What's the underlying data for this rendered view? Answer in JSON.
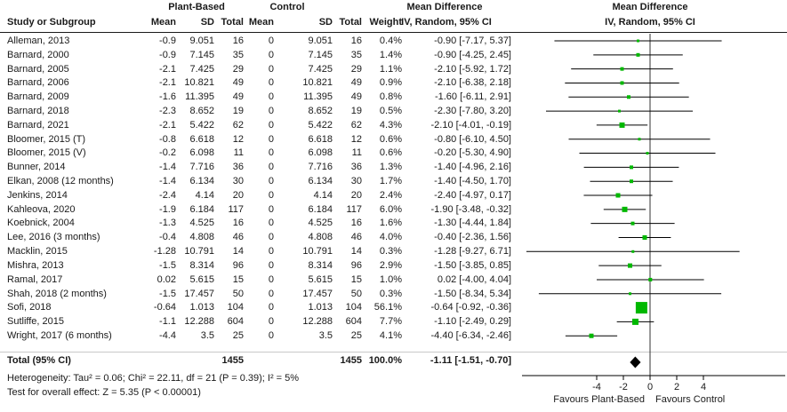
{
  "chart_data": {
    "type": "scatter",
    "variant": "forest-plot-meta-analysis",
    "effect_measure": "Mean Difference",
    "method": "IV, Random, 95% CI",
    "group_headers": [
      "Plant-Based",
      "Control",
      "Mean Difference",
      "Mean Difference"
    ],
    "columns": [
      "Study or Subgroup",
      "Mean",
      "SD",
      "Total",
      "Mean",
      "SD",
      "Total",
      "Weight"
    ],
    "studies": [
      {
        "name": "Alleman, 2013",
        "pb_mean": "-0.9",
        "pb_sd": "9.051",
        "pb_total": "16",
        "c_mean": "0",
        "c_sd": "9.051",
        "c_total": "16",
        "weight": "0.4%",
        "md": -0.9,
        "lo": -7.17,
        "hi": 5.37,
        "ci_text": "-0.90 [-7.17, 5.37]"
      },
      {
        "name": "Barnard, 2000",
        "pb_mean": "-0.9",
        "pb_sd": "7.145",
        "pb_total": "35",
        "c_mean": "0",
        "c_sd": "7.145",
        "c_total": "35",
        "weight": "1.4%",
        "md": -0.9,
        "lo": -4.25,
        "hi": 2.45,
        "ci_text": "-0.90 [-4.25, 2.45]"
      },
      {
        "name": "Barnard, 2005",
        "pb_mean": "-2.1",
        "pb_sd": "7.425",
        "pb_total": "29",
        "c_mean": "0",
        "c_sd": "7.425",
        "c_total": "29",
        "weight": "1.1%",
        "md": -2.1,
        "lo": -5.92,
        "hi": 1.72,
        "ci_text": "-2.10 [-5.92, 1.72]"
      },
      {
        "name": "Barnard, 2006",
        "pb_mean": "-2.1",
        "pb_sd": "10.821",
        "pb_total": "49",
        "c_mean": "0",
        "c_sd": "10.821",
        "c_total": "49",
        "weight": "0.9%",
        "md": -2.1,
        "lo": -6.38,
        "hi": 2.18,
        "ci_text": "-2.10 [-6.38, 2.18]"
      },
      {
        "name": "Barnard, 2009",
        "pb_mean": "-1.6",
        "pb_sd": "11.395",
        "pb_total": "49",
        "c_mean": "0",
        "c_sd": "11.395",
        "c_total": "49",
        "weight": "0.8%",
        "md": -1.6,
        "lo": -6.11,
        "hi": 2.91,
        "ci_text": "-1.60 [-6.11, 2.91]"
      },
      {
        "name": "Barnard, 2018",
        "pb_mean": "-2.3",
        "pb_sd": "8.652",
        "pb_total": "19",
        "c_mean": "0",
        "c_sd": "8.652",
        "c_total": "19",
        "weight": "0.5%",
        "md": -2.3,
        "lo": -7.8,
        "hi": 3.2,
        "ci_text": "-2.30 [-7.80, 3.20]"
      },
      {
        "name": "Barnard, 2021",
        "pb_mean": "-2.1",
        "pb_sd": "5.422",
        "pb_total": "62",
        "c_mean": "0",
        "c_sd": "5.422",
        "c_total": "62",
        "weight": "4.3%",
        "md": -2.1,
        "lo": -4.01,
        "hi": -0.19,
        "ci_text": "-2.10 [-4.01, -0.19]"
      },
      {
        "name": "Bloomer, 2015 (T)",
        "pb_mean": "-0.8",
        "pb_sd": "6.618",
        "pb_total": "12",
        "c_mean": "0",
        "c_sd": "6.618",
        "c_total": "12",
        "weight": "0.6%",
        "md": -0.8,
        "lo": -6.1,
        "hi": 4.5,
        "ci_text": "-0.80 [-6.10, 4.50]"
      },
      {
        "name": "Bloomer, 2015 (V)",
        "pb_mean": "-0.2",
        "pb_sd": "6.098",
        "pb_total": "11",
        "c_mean": "0",
        "c_sd": "6.098",
        "c_total": "11",
        "weight": "0.6%",
        "md": -0.2,
        "lo": -5.3,
        "hi": 4.9,
        "ci_text": "-0.20 [-5.30, 4.90]"
      },
      {
        "name": "Bunner, 2014",
        "pb_mean": "-1.4",
        "pb_sd": "7.716",
        "pb_total": "36",
        "c_mean": "0",
        "c_sd": "7.716",
        "c_total": "36",
        "weight": "1.3%",
        "md": -1.4,
        "lo": -4.96,
        "hi": 2.16,
        "ci_text": "-1.40 [-4.96, 2.16]"
      },
      {
        "name": "Elkan, 2008 (12 months)",
        "pb_mean": "-1.4",
        "pb_sd": "6.134",
        "pb_total": "30",
        "c_mean": "0",
        "c_sd": "6.134",
        "c_total": "30",
        "weight": "1.7%",
        "md": -1.4,
        "lo": -4.5,
        "hi": 1.7,
        "ci_text": "-1.40 [-4.50, 1.70]"
      },
      {
        "name": "Jenkins, 2014",
        "pb_mean": "-2.4",
        "pb_sd": "4.14",
        "pb_total": "20",
        "c_mean": "0",
        "c_sd": "4.14",
        "c_total": "20",
        "weight": "2.4%",
        "md": -2.4,
        "lo": -4.97,
        "hi": 0.17,
        "ci_text": "-2.40 [-4.97, 0.17]"
      },
      {
        "name": "Kahleova, 2020",
        "pb_mean": "-1.9",
        "pb_sd": "6.184",
        "pb_total": "117",
        "c_mean": "0",
        "c_sd": "6.184",
        "c_total": "117",
        "weight": "6.0%",
        "md": -1.9,
        "lo": -3.48,
        "hi": -0.32,
        "ci_text": "-1.90 [-3.48, -0.32]"
      },
      {
        "name": "Koebnick, 2004",
        "pb_mean": "-1.3",
        "pb_sd": "4.525",
        "pb_total": "16",
        "c_mean": "0",
        "c_sd": "4.525",
        "c_total": "16",
        "weight": "1.6%",
        "md": -1.3,
        "lo": -4.44,
        "hi": 1.84,
        "ci_text": "-1.30 [-4.44, 1.84]"
      },
      {
        "name": "Lee, 2016 (3 months)",
        "pb_mean": "-0.4",
        "pb_sd": "4.808",
        "pb_total": "46",
        "c_mean": "0",
        "c_sd": "4.808",
        "c_total": "46",
        "weight": "4.0%",
        "md": -0.4,
        "lo": -2.36,
        "hi": 1.56,
        "ci_text": "-0.40 [-2.36, 1.56]"
      },
      {
        "name": "Macklin, 2015",
        "pb_mean": "-1.28",
        "pb_sd": "10.791",
        "pb_total": "14",
        "c_mean": "0",
        "c_sd": "10.791",
        "c_total": "14",
        "weight": "0.3%",
        "md": -1.28,
        "lo": -9.27,
        "hi": 6.71,
        "ci_text": "-1.28 [-9.27, 6.71]"
      },
      {
        "name": "Mishra, 2013",
        "pb_mean": "-1.5",
        "pb_sd": "8.314",
        "pb_total": "96",
        "c_mean": "0",
        "c_sd": "8.314",
        "c_total": "96",
        "weight": "2.9%",
        "md": -1.5,
        "lo": -3.85,
        "hi": 0.85,
        "ci_text": "-1.50 [-3.85, 0.85]"
      },
      {
        "name": "Ramal, 2017",
        "pb_mean": "0.02",
        "pb_sd": "5.615",
        "pb_total": "15",
        "c_mean": "0",
        "c_sd": "5.615",
        "c_total": "15",
        "weight": "1.0%",
        "md": 0.02,
        "lo": -4.0,
        "hi": 4.04,
        "ci_text": "0.02 [-4.00, 4.04]"
      },
      {
        "name": "Shah, 2018 (2 months)",
        "pb_mean": "-1.5",
        "pb_sd": "17.457",
        "pb_total": "50",
        "c_mean": "0",
        "c_sd": "17.457",
        "c_total": "50",
        "weight": "0.3%",
        "md": -1.5,
        "lo": -8.34,
        "hi": 5.34,
        "ci_text": "-1.50 [-8.34, 5.34]"
      },
      {
        "name": "Sofi, 2018",
        "pb_mean": "-0.64",
        "pb_sd": "1.013",
        "pb_total": "104",
        "c_mean": "0",
        "c_sd": "1.013",
        "c_total": "104",
        "weight": "56.1%",
        "md": -0.64,
        "lo": -0.92,
        "hi": -0.36,
        "ci_text": "-0.64 [-0.92, -0.36]"
      },
      {
        "name": "Sutliffe, 2015",
        "pb_mean": "-1.1",
        "pb_sd": "12.288",
        "pb_total": "604",
        "c_mean": "0",
        "c_sd": "12.288",
        "c_total": "604",
        "weight": "7.7%",
        "md": -1.1,
        "lo": -2.49,
        "hi": 0.29,
        "ci_text": "-1.10 [-2.49, 0.29]"
      },
      {
        "name": "Wright, 2017 (6 months)",
        "pb_mean": "-4.4",
        "pb_sd": "3.5",
        "pb_total": "25",
        "c_mean": "0",
        "c_sd": "3.5",
        "c_total": "25",
        "weight": "4.1%",
        "md": -4.4,
        "lo": -6.34,
        "hi": -2.46,
        "ci_text": "-4.40 [-6.34, -2.46]"
      }
    ],
    "total": {
      "label": "Total (95% CI)",
      "pb_total": "1455",
      "c_total": "1455",
      "weight": "100.0%",
      "md": -1.11,
      "lo": -1.51,
      "hi": -0.7,
      "ci_text": "-1.11 [-1.51, -0.70]"
    },
    "heterogeneity": "Heterogeneity: Tau² = 0.06; Chi² = 22.11, df = 21 (P = 0.39); I² = 5%",
    "overall_effect": "Test for overall effect: Z = 5.35 (P < 0.00001)",
    "axis": {
      "ticks": [
        "-4",
        "-2",
        "0",
        "2",
        "4"
      ],
      "tick_values": [
        -4,
        -2,
        0,
        2,
        4
      ],
      "left_label": "Favours Plant-Based",
      "right_label": "Favours Control"
    },
    "colors": {
      "marker": "#00b800",
      "diamond": "#000000",
      "ci_line": "#000000"
    }
  }
}
